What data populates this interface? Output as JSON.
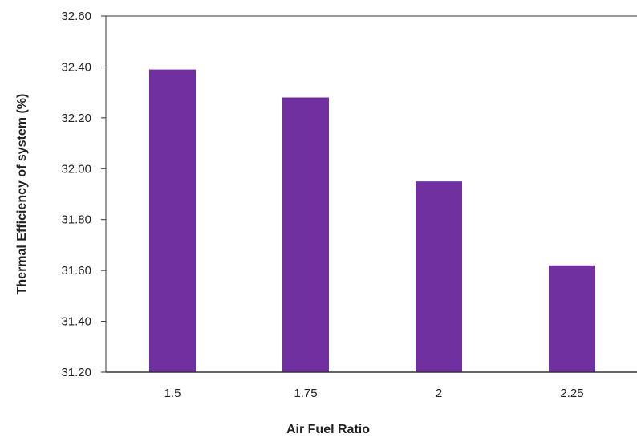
{
  "chart_data": {
    "type": "bar",
    "title": "",
    "xlabel": "Air Fuel Ratio",
    "ylabel": "Thermal Efficiency of system  (%)",
    "categories": [
      "1.5",
      "1.75",
      "2",
      "2.25"
    ],
    "values": [
      32.39,
      32.28,
      31.95,
      31.62
    ],
    "ylim": [
      31.2,
      32.6
    ],
    "yticks": [
      "31.20",
      "31.40",
      "31.60",
      "31.80",
      "32.00",
      "32.20",
      "32.40",
      "32.60"
    ],
    "grid": false,
    "legend": "none",
    "bar_color": "#7030a0"
  }
}
